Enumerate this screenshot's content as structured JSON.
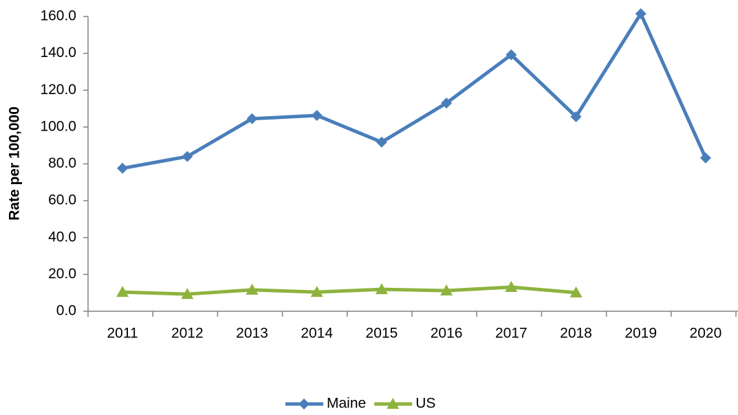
{
  "chart_data": {
    "type": "line",
    "y_label": "Rate per 100,000",
    "categories": [
      "2011",
      "2012",
      "2013",
      "2014",
      "2015",
      "2016",
      "2017",
      "2018",
      "2019",
      "2020"
    ],
    "series": [
      {
        "name": "Maine",
        "color": "#4a7ebb",
        "marker": "diamond",
        "values": [
          77.6,
          84.0,
          104.5,
          106.3,
          91.8,
          113.0,
          139.2,
          105.6,
          161.5,
          83.2
        ]
      },
      {
        "name": "US",
        "color": "#8db33e",
        "marker": "triangle",
        "values": [
          10.4,
          9.3,
          11.6,
          10.4,
          11.9,
          11.2,
          13.1,
          10.1,
          null,
          null
        ]
      }
    ],
    "ylim": [
      0,
      160
    ],
    "yticks": [
      {
        "value": 0,
        "label": "0.0"
      },
      {
        "value": 20,
        "label": "20.0"
      },
      {
        "value": 40,
        "label": "40.0"
      },
      {
        "value": 60,
        "label": "60.0"
      },
      {
        "value": 80,
        "label": "80.0"
      },
      {
        "value": 100,
        "label": "100.0"
      },
      {
        "value": 120,
        "label": "120.0"
      },
      {
        "value": 140,
        "label": "140.0"
      },
      {
        "value": 160,
        "label": "160.0"
      }
    ],
    "grid": false,
    "legend": "bottom"
  }
}
